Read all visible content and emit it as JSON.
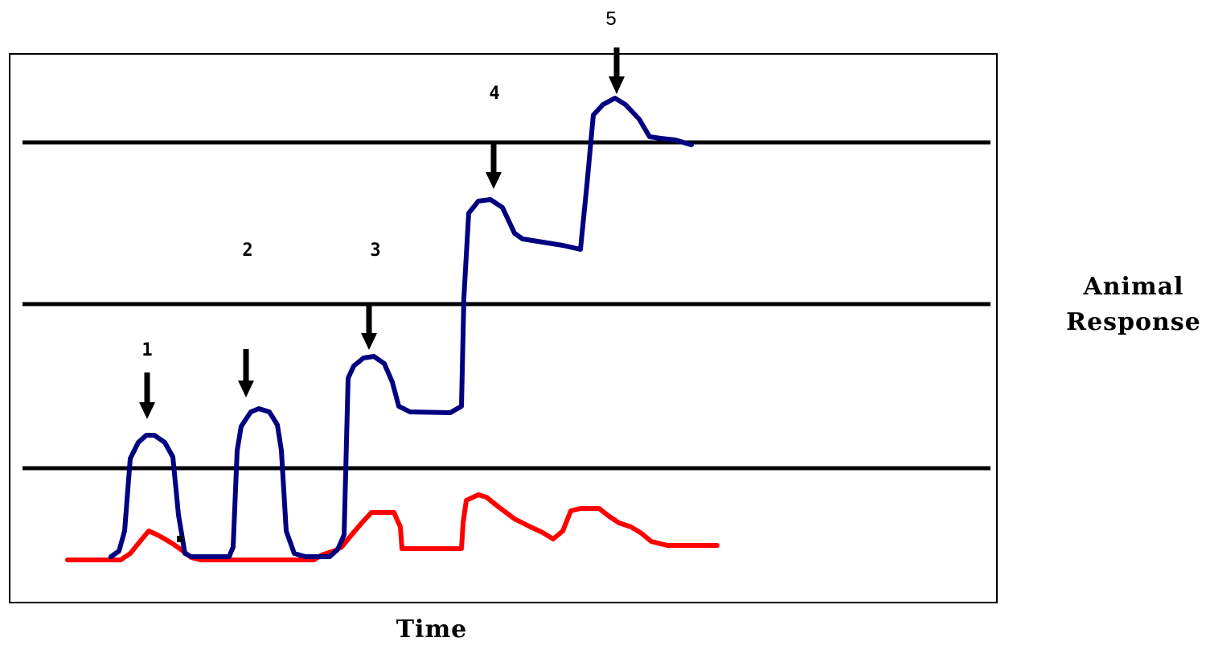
{
  "colors": {
    "response_line": "#000080",
    "baseline_line": "#ff0000",
    "threshold_line": "#000000",
    "arrow": "#000000",
    "frame": "#000000",
    "background": "#ffffff"
  },
  "labels": {
    "x_axis": "Time",
    "y_axis_line1": "Animal",
    "y_axis_line2": "Response",
    "stimulus_1": "1",
    "stimulus_2": "2",
    "stimulus_3": "3",
    "stimulus_4": "4",
    "stimulus_5": "5"
  }
}
